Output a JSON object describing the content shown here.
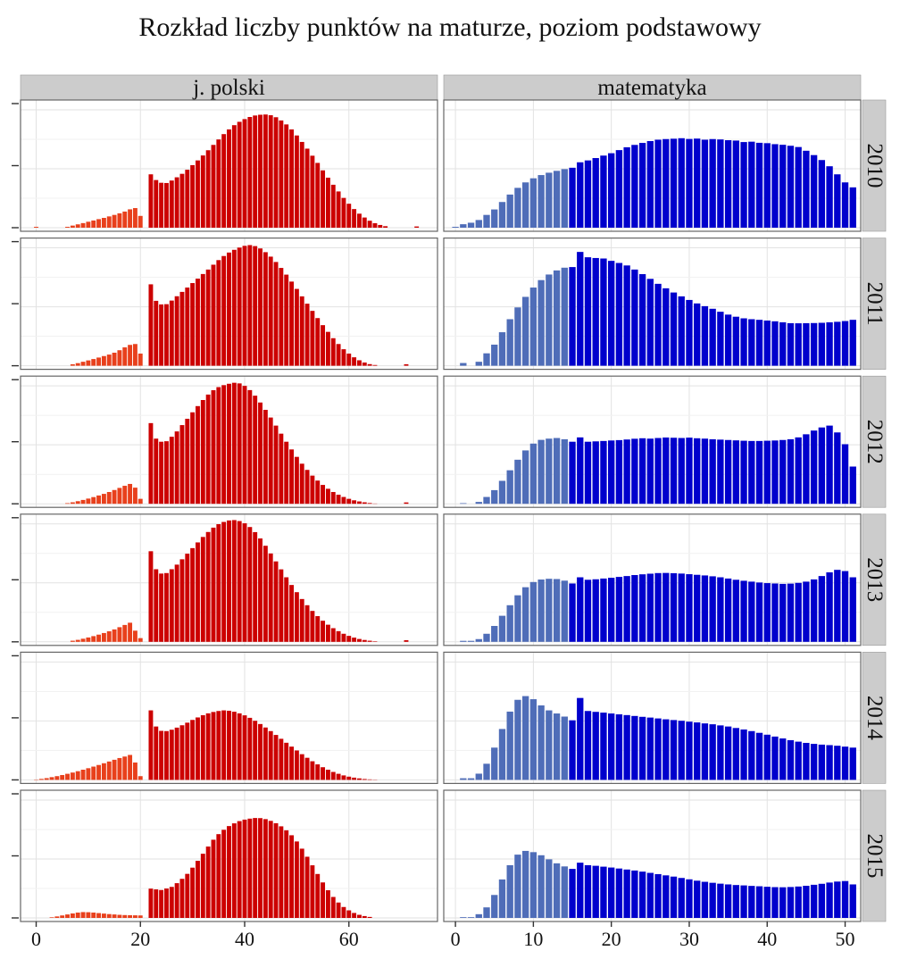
{
  "title": "Rozkład liczby punktów na maturze, poziom podstawowy",
  "chart_data": {
    "type": "bar",
    "title": "Rozkład liczby punktów na maturze, poziom podstawowy",
    "xlabel": "",
    "ylabel": "",
    "columns": [
      {
        "name": "j. polski",
        "xlim": [
          -3,
          77
        ],
        "x_ticks": [
          0,
          20,
          40,
          60
        ],
        "pass_threshold": 21,
        "colors": {
          "below": "#e8401c",
          "above": "#cc0000"
        }
      },
      {
        "name": "matematyka",
        "xlim": [
          -1.5,
          52
        ],
        "x_ticks": [
          0,
          10,
          20,
          30,
          40,
          50
        ],
        "pass_threshold": 15,
        "colors": {
          "below": "#4f6db8",
          "above": "#0000cc"
        }
      }
    ],
    "rows": [
      "2010",
      "2011",
      "2012",
      "2013",
      "2014",
      "2015"
    ],
    "panels": {
      "2010": {
        "j. polski": [
          0.7,
          0,
          0,
          0,
          0,
          0,
          0.7,
          1.7,
          2.7,
          3.7,
          4.8,
          5.8,
          6.9,
          7.9,
          9.1,
          10.3,
          11.6,
          13.0,
          14.8,
          15.8,
          9.5,
          0,
          43.0,
          38.4,
          36.2,
          36.0,
          38.0,
          40.6,
          43.4,
          46.7,
          50.4,
          54.2,
          58.2,
          62.4,
          66.7,
          71.1,
          75.4,
          79.2,
          82.6,
          85.3,
          87.5,
          89.2,
          90.4,
          91.0,
          91.2,
          90.6,
          89.0,
          86.4,
          83.2,
          79.2,
          74.3,
          69.1,
          63.7,
          58.0,
          52.2,
          46.2,
          40.3,
          34.6,
          29.2,
          24.0,
          19.3,
          15.0,
          11.3,
          8.2,
          5.6,
          3.6,
          2.2,
          1.2,
          0,
          0,
          0,
          0,
          0,
          1.0
        ],
        "matematyka": [
          0.7,
          2.8,
          4.0,
          6.2,
          10.3,
          14.7,
          20.7,
          26.7,
          32.1,
          36.5,
          39.8,
          42.4,
          44.3,
          45.8,
          47.2,
          48.3,
          52.7,
          54.2,
          56.1,
          58.1,
          60.0,
          62.5,
          64.8,
          66.7,
          68.3,
          69.8,
          70.9,
          71.4,
          71.7,
          72.1,
          71.5,
          71.8,
          70.9,
          71.4,
          71.1,
          70.5,
          70.2,
          69.0,
          69.3,
          68.4,
          68.1,
          67.3,
          66.8,
          66.0,
          65.0,
          62.0,
          58.5,
          54.5,
          49.5,
          43.0,
          36.5,
          32.5
        ]
      },
      "2011": {
        "j. polski": [
          0,
          0,
          0,
          0,
          0,
          0,
          0,
          1.2,
          2.1,
          3.2,
          4.3,
          5.4,
          6.6,
          7.8,
          9.0,
          10.5,
          12.5,
          14.8,
          16.8,
          17.5,
          9.8,
          0,
          65.6,
          52.3,
          49.4,
          49.6,
          52.5,
          56.0,
          59.5,
          63.0,
          66.6,
          70.2,
          73.9,
          77.5,
          81.4,
          85.1,
          88.4,
          91.2,
          93.4,
          95.2,
          96.6,
          97.2,
          96.4,
          94.5,
          91.5,
          87.9,
          83.6,
          78.8,
          73.4,
          67.8,
          61.9,
          55.9,
          50.0,
          44.2,
          38.4,
          32.7,
          27.3,
          22.2,
          17.5,
          13.3,
          9.8,
          6.8,
          4.4,
          2.6,
          1.3,
          0.6,
          0,
          0,
          0,
          0,
          0,
          1.2
        ],
        "matematyka": [
          0,
          2.2,
          0,
          3.2,
          10.0,
          17.0,
          27.0,
          37.5,
          47.0,
          55.5,
          63.0,
          69.0,
          73.5,
          76.8,
          79.0,
          79.5,
          91.7,
          87.4,
          86.8,
          86.4,
          84.5,
          82.8,
          80.8,
          77.5,
          73.8,
          70.0,
          66.0,
          62.4,
          59.0,
          55.9,
          53.0,
          50.2,
          48.0,
          45.9,
          43.5,
          41.2,
          39.5,
          38.2,
          37.5,
          37.0,
          36.4,
          35.8,
          35.0,
          34.3,
          34.2,
          34.3,
          34.4,
          34.6,
          35.0,
          35.4,
          36.0,
          37.0
        ]
      },
      "2012": {
        "j. polski": [
          0,
          0,
          0,
          0,
          0,
          0,
          0.5,
          1.2,
          2.1,
          3.1,
          4.2,
          5.4,
          6.7,
          8.0,
          9.5,
          11.1,
          12.8,
          14.5,
          16.0,
          13.0,
          4.0,
          0,
          65.0,
          52.5,
          50.0,
          50.4,
          54.0,
          58.3,
          63.4,
          68.5,
          73.7,
          78.7,
          83.6,
          88.0,
          91.5,
          94.0,
          95.6,
          96.7,
          97.5,
          97.0,
          95.0,
          91.6,
          87.1,
          81.6,
          75.7,
          69.5,
          63.0,
          56.5,
          50.0,
          43.8,
          37.8,
          32.3,
          27.3,
          22.7,
          18.7,
          15.2,
          12.1,
          9.5,
          7.3,
          5.5,
          4.0,
          2.8,
          1.9,
          1.2,
          0.6,
          0.2,
          0,
          0,
          0,
          0,
          0,
          1.1
        ],
        "matematyka": [
          0,
          0.5,
          0,
          1.5,
          5.5,
          11.0,
          18.5,
          27.0,
          35.5,
          43.0,
          48.5,
          51.5,
          52.5,
          53.0,
          52.0,
          50.0,
          53.5,
          50.0,
          50.3,
          50.6,
          51.0,
          51.3,
          51.8,
          52.4,
          52.8,
          52.5,
          53.0,
          53.4,
          53.2,
          53.0,
          53.3,
          52.8,
          52.5,
          52.0,
          51.7,
          51.4,
          51.1,
          50.8,
          50.6,
          50.6,
          50.8,
          51.0,
          51.4,
          52.0,
          53.5,
          56.0,
          59.0,
          61.5,
          63.0,
          57.5,
          48.0,
          30.0
        ]
      },
      "2013": {
        "j. polski": [
          0,
          0,
          0,
          0,
          0,
          0,
          0,
          0.9,
          1.6,
          2.5,
          3.5,
          4.6,
          5.8,
          7.1,
          8.5,
          10.0,
          11.8,
          13.6,
          15.4,
          9.0,
          3.0,
          0,
          73.0,
          58.5,
          55.0,
          55.4,
          58.5,
          62.2,
          66.5,
          71.0,
          75.5,
          80.1,
          84.5,
          88.5,
          92.0,
          94.8,
          96.6,
          97.8,
          98.1,
          97.3,
          95.5,
          92.5,
          88.4,
          83.3,
          77.4,
          71.2,
          64.8,
          58.4,
          52.0,
          45.8,
          40.0,
          34.5,
          29.5,
          24.9,
          20.7,
          17.0,
          13.8,
          11.0,
          8.6,
          6.5,
          4.8,
          3.4,
          2.3,
          1.5,
          0.9,
          0.4,
          0,
          0,
          0,
          0,
          0,
          1.3
        ],
        "matematyka": [
          0,
          0.8,
          0.8,
          2.2,
          6.5,
          12.8,
          21.0,
          29.5,
          37.5,
          44.0,
          48.2,
          50.2,
          50.8,
          50.6,
          49.3,
          47.0,
          52.0,
          50.0,
          50.4,
          51.0,
          51.6,
          52.3,
          53.0,
          53.8,
          54.4,
          54.9,
          55.4,
          55.5,
          55.3,
          55.0,
          54.5,
          54.0,
          53.5,
          52.8,
          52.0,
          51.0,
          50.0,
          49.2,
          48.5,
          47.8,
          47.3,
          47.0,
          46.7,
          46.9,
          47.5,
          48.5,
          50.3,
          53.0,
          56.0,
          58.0,
          57.0,
          52.0
        ]
      },
      "2014": {
        "j. polski": [
          0.3,
          0.8,
          1.4,
          2.2,
          3.0,
          3.9,
          4.9,
          5.9,
          7.0,
          8.2,
          9.4,
          10.7,
          12.0,
          13.4,
          14.8,
          16.2,
          17.6,
          18.8,
          20.1,
          14.0,
          3.0,
          0,
          56.0,
          43.0,
          39.5,
          39.3,
          40.4,
          42.1,
          44.0,
          46.1,
          48.3,
          50.3,
          52.1,
          53.6,
          54.7,
          55.5,
          56.0,
          55.7,
          54.9,
          53.6,
          52.0,
          50.0,
          47.6,
          45.0,
          42.2,
          39.3,
          36.2,
          33.1,
          29.9,
          26.8,
          23.7,
          20.7,
          17.8,
          15.0,
          12.5,
          10.2,
          8.2,
          6.4,
          4.9,
          3.6,
          2.6,
          1.8,
          1.2,
          0.7,
          0.4,
          0.2
        ],
        "matematyka": [
          0,
          1.3,
          1.3,
          5.0,
          13.0,
          26.0,
          41.0,
          55.0,
          64.5,
          67.5,
          65.0,
          60.0,
          56.0,
          53.5,
          51.0,
          48.0,
          66.0,
          55.5,
          54.8,
          54.2,
          53.5,
          52.8,
          52.2,
          51.5,
          50.8,
          50.2,
          49.5,
          48.8,
          48.2,
          47.6,
          46.9,
          46.3,
          45.5,
          44.8,
          43.9,
          43.0,
          41.8,
          40.6,
          39.3,
          37.9,
          36.4,
          34.9,
          33.4,
          32.0,
          30.8,
          29.8,
          29.0,
          28.4,
          28.0,
          27.5,
          26.8,
          26.0
        ]
      },
      "2015": {
        "j. polski": [
          0,
          0,
          0,
          0.5,
          1.2,
          2.0,
          2.8,
          3.6,
          4.3,
          4.7,
          4.6,
          4.3,
          3.9,
          3.5,
          3.1,
          2.8,
          2.5,
          2.3,
          2.2,
          2.1,
          2.0,
          0,
          23.6,
          23.0,
          22.5,
          23.7,
          25.0,
          28.0,
          31.5,
          35.5,
          40.5,
          46.0,
          51.7,
          57.5,
          63.0,
          67.5,
          71.0,
          74.0,
          76.2,
          78.0,
          79.2,
          80.0,
          80.5,
          80.4,
          79.6,
          78.2,
          76.3,
          73.8,
          70.6,
          66.6,
          61.6,
          55.8,
          49.3,
          42.4,
          35.4,
          28.6,
          22.3,
          16.9,
          12.4,
          8.8,
          6.1,
          4.0,
          2.5,
          1.5,
          0.8
        ],
        "matematyka": [
          0,
          0.6,
          0.6,
          3.0,
          8.5,
          18.5,
          31.0,
          42.5,
          51.0,
          54.0,
          53.0,
          50.5,
          47.2,
          44.0,
          41.5,
          39.5,
          44.5,
          42.5,
          42.0,
          41.3,
          40.6,
          39.8,
          39.0,
          38.2,
          37.3,
          36.3,
          35.3,
          34.3,
          33.3,
          32.2,
          31.1,
          30.0,
          29.1,
          28.3,
          27.6,
          27.0,
          26.5,
          26.2,
          25.8,
          25.5,
          25.1,
          24.8,
          24.7,
          24.9,
          25.3,
          25.9,
          26.7,
          27.5,
          28.5,
          29.3,
          29.7,
          27.0
        ]
      }
    }
  }
}
